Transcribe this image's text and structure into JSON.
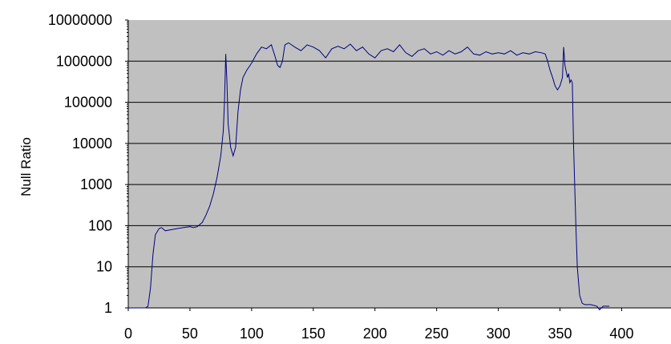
{
  "chart_data": {
    "type": "line",
    "title": "",
    "xlabel": "",
    "ylabel": "Null Ratio",
    "y_scale": "log",
    "xlim": [
      0,
      440
    ],
    "ylim": [
      1,
      10000000
    ],
    "x_ticks": [
      0,
      50,
      100,
      150,
      200,
      250,
      300,
      350,
      400
    ],
    "y_ticks": [
      1,
      10,
      100,
      1000,
      10000,
      100000,
      1000000,
      10000000
    ],
    "x_tick_labels": [
      "0",
      "50",
      "100",
      "150",
      "200",
      "250",
      "300",
      "350",
      "400"
    ],
    "y_tick_labels": [
      "1",
      "10",
      "100",
      "1000",
      "10000",
      "100000",
      "1000000",
      "10000000"
    ],
    "grid": "horizontal",
    "legend": "none",
    "plot_background": "#c0c0c0",
    "line_color": "#000080",
    "gridline_color": "#000000",
    "series": [
      {
        "points": [
          [
            0,
            1
          ],
          [
            10,
            1
          ],
          [
            14,
            1
          ],
          [
            16,
            1.1
          ],
          [
            18,
            3
          ],
          [
            20,
            20
          ],
          [
            22,
            60
          ],
          [
            25,
            85
          ],
          [
            27,
            90
          ],
          [
            30,
            75
          ],
          [
            35,
            80
          ],
          [
            40,
            85
          ],
          [
            45,
            90
          ],
          [
            50,
            95
          ],
          [
            53,
            90
          ],
          [
            56,
            95
          ],
          [
            60,
            120
          ],
          [
            63,
            180
          ],
          [
            66,
            300
          ],
          [
            69,
            600
          ],
          [
            72,
            1500
          ],
          [
            75,
            5000
          ],
          [
            77,
            20000
          ],
          [
            78,
            100000
          ],
          [
            79,
            1500000
          ],
          [
            80,
            300000
          ],
          [
            81,
            30000
          ],
          [
            83,
            8000
          ],
          [
            85,
            5000
          ],
          [
            87,
            8000
          ],
          [
            89,
            60000
          ],
          [
            91,
            200000
          ],
          [
            93,
            400000
          ],
          [
            96,
            600000
          ],
          [
            100,
            900000
          ],
          [
            104,
            1500000
          ],
          [
            108,
            2200000
          ],
          [
            112,
            2000000
          ],
          [
            116,
            2500000
          ],
          [
            119,
            1300000
          ],
          [
            121,
            800000
          ],
          [
            123,
            700000
          ],
          [
            125,
            1000000
          ],
          [
            127,
            2500000
          ],
          [
            130,
            2800000
          ],
          [
            135,
            2200000
          ],
          [
            140,
            1800000
          ],
          [
            145,
            2500000
          ],
          [
            150,
            2200000
          ],
          [
            155,
            1800000
          ],
          [
            160,
            1200000
          ],
          [
            165,
            2000000
          ],
          [
            170,
            2300000
          ],
          [
            175,
            2000000
          ],
          [
            180,
            2600000
          ],
          [
            185,
            1800000
          ],
          [
            190,
            2200000
          ],
          [
            195,
            1500000
          ],
          [
            200,
            1200000
          ],
          [
            205,
            1800000
          ],
          [
            210,
            2000000
          ],
          [
            215,
            1700000
          ],
          [
            220,
            2500000
          ],
          [
            225,
            1600000
          ],
          [
            230,
            1300000
          ],
          [
            235,
            1800000
          ],
          [
            240,
            2000000
          ],
          [
            245,
            1500000
          ],
          [
            250,
            1700000
          ],
          [
            255,
            1400000
          ],
          [
            260,
            1800000
          ],
          [
            265,
            1500000
          ],
          [
            270,
            1700000
          ],
          [
            275,
            2200000
          ],
          [
            280,
            1500000
          ],
          [
            285,
            1400000
          ],
          [
            290,
            1700000
          ],
          [
            295,
            1500000
          ],
          [
            300,
            1600000
          ],
          [
            305,
            1500000
          ],
          [
            310,
            1800000
          ],
          [
            315,
            1400000
          ],
          [
            320,
            1600000
          ],
          [
            325,
            1500000
          ],
          [
            330,
            1700000
          ],
          [
            335,
            1600000
          ],
          [
            338,
            1500000
          ],
          [
            340,
            1000000
          ],
          [
            342,
            600000
          ],
          [
            344,
            400000
          ],
          [
            346,
            250000
          ],
          [
            348,
            200000
          ],
          [
            350,
            250000
          ],
          [
            352,
            400000
          ],
          [
            353,
            2200000
          ],
          [
            354,
            800000
          ],
          [
            356,
            400000
          ],
          [
            357,
            500000
          ],
          [
            358,
            300000
          ],
          [
            359,
            350000
          ],
          [
            360,
            300000
          ],
          [
            361,
            10000
          ],
          [
            362,
            800
          ],
          [
            363,
            80
          ],
          [
            364,
            10
          ],
          [
            366,
            2
          ],
          [
            368,
            1.3
          ],
          [
            370,
            1.2
          ],
          [
            375,
            1.2
          ],
          [
            380,
            1.1
          ],
          [
            382,
            0.9
          ],
          [
            385,
            1.1
          ],
          [
            390,
            1.1
          ]
        ]
      }
    ]
  }
}
